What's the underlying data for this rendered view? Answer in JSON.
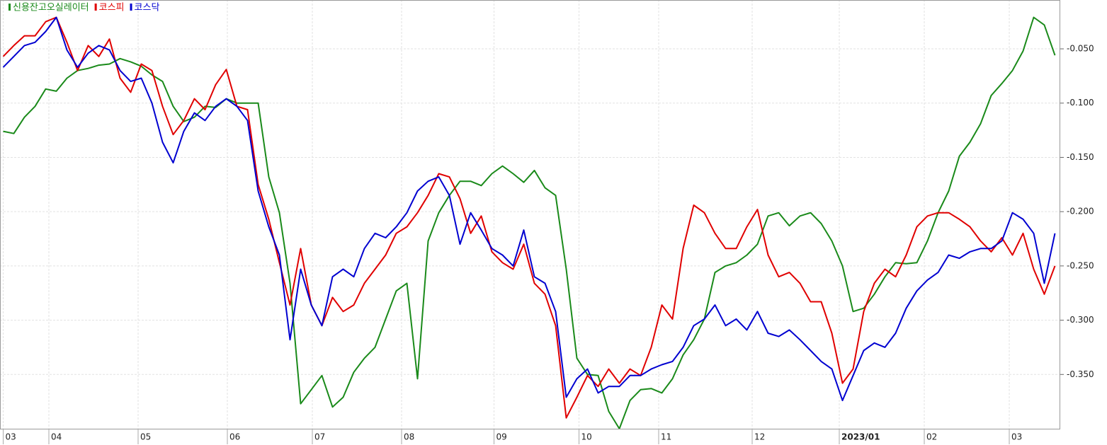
{
  "chart_data": {
    "type": "line",
    "xlim": [
      -0.3,
      99.5
    ],
    "xticks": [
      {
        "value": 0,
        "label": "03"
      },
      {
        "value": 4.3,
        "label": "04"
      },
      {
        "value": 12.7,
        "label": "05"
      },
      {
        "value": 21.1,
        "label": "06"
      },
      {
        "value": 29.1,
        "label": "07"
      },
      {
        "value": 37.5,
        "label": "08"
      },
      {
        "value": 46.2,
        "label": "09"
      },
      {
        "value": 54.2,
        "label": "10"
      },
      {
        "value": 61.7,
        "label": "11"
      },
      {
        "value": 70.5,
        "label": "12"
      },
      {
        "value": 78.7,
        "label": "2023/01"
      },
      {
        "value": 86.7,
        "label": "02"
      },
      {
        "value": 94.7,
        "label": "03"
      }
    ],
    "ylim": [
      -0.4,
      -0.005
    ],
    "yticks": [
      {
        "value": -0.05,
        "label": "-0.050"
      },
      {
        "value": -0.1,
        "label": "-0.100"
      },
      {
        "value": -0.15,
        "label": "-0.150"
      },
      {
        "value": -0.2,
        "label": "-0.200"
      },
      {
        "value": -0.25,
        "label": "-0.250"
      },
      {
        "value": -0.3,
        "label": "-0.300"
      },
      {
        "value": -0.35,
        "label": "-0.350"
      }
    ],
    "grid": true,
    "legend": "top-left",
    "series": [
      {
        "name": "신용잔고오실레이터",
        "color": "#1a8a1a",
        "values": [
          -0.126,
          -0.128,
          -0.113,
          -0.103,
          -0.087,
          -0.089,
          -0.077,
          -0.07,
          -0.068,
          -0.065,
          -0.064,
          -0.059,
          -0.062,
          -0.066,
          -0.074,
          -0.08,
          -0.103,
          -0.117,
          -0.113,
          -0.103,
          -0.104,
          -0.096,
          -0.1,
          -0.1,
          -0.1,
          -0.168,
          -0.201,
          -0.266,
          -0.377,
          -0.364,
          -0.351,
          -0.38,
          -0.371,
          -0.348,
          -0.335,
          -0.325,
          -0.299,
          -0.273,
          -0.266,
          -0.354,
          -0.227,
          -0.201,
          -0.185,
          -0.172,
          -0.172,
          -0.176,
          -0.165,
          -0.158,
          -0.165,
          -0.173,
          -0.162,
          -0.178,
          -0.185,
          -0.253,
          -0.335,
          -0.35,
          -0.351,
          -0.384,
          -0.4,
          -0.374,
          -0.364,
          -0.363,
          -0.367,
          -0.354,
          -0.332,
          -0.318,
          -0.299,
          -0.256,
          -0.25,
          -0.247,
          -0.24,
          -0.23,
          -0.204,
          -0.201,
          -0.213,
          -0.204,
          -0.201,
          -0.211,
          -0.227,
          -0.25,
          -0.292,
          -0.289,
          -0.276,
          -0.26,
          -0.247,
          -0.248,
          -0.247,
          -0.227,
          -0.201,
          -0.181,
          -0.149,
          -0.136,
          -0.119,
          -0.093,
          -0.082,
          -0.07,
          -0.052,
          -0.021,
          -0.028,
          -0.056
        ]
      },
      {
        "name": "코스피",
        "color": "#e00000",
        "values": [
          -0.057,
          -0.047,
          -0.038,
          -0.038,
          -0.025,
          -0.021,
          -0.044,
          -0.07,
          -0.047,
          -0.057,
          -0.041,
          -0.077,
          -0.09,
          -0.064,
          -0.07,
          -0.103,
          -0.129,
          -0.116,
          -0.096,
          -0.106,
          -0.083,
          -0.069,
          -0.103,
          -0.106,
          -0.175,
          -0.207,
          -0.247,
          -0.286,
          -0.234,
          -0.286,
          -0.305,
          -0.279,
          -0.292,
          -0.286,
          -0.266,
          -0.253,
          -0.24,
          -0.22,
          -0.214,
          -0.201,
          -0.185,
          -0.165,
          -0.168,
          -0.188,
          -0.22,
          -0.204,
          -0.237,
          -0.247,
          -0.253,
          -0.23,
          -0.266,
          -0.276,
          -0.305,
          -0.39,
          -0.371,
          -0.351,
          -0.361,
          -0.345,
          -0.358,
          -0.345,
          -0.351,
          -0.325,
          -0.286,
          -0.299,
          -0.234,
          -0.194,
          -0.201,
          -0.22,
          -0.234,
          -0.234,
          -0.214,
          -0.198,
          -0.24,
          -0.26,
          -0.256,
          -0.266,
          -0.283,
          -0.283,
          -0.312,
          -0.358,
          -0.345,
          -0.292,
          -0.266,
          -0.253,
          -0.26,
          -0.24,
          -0.214,
          -0.204,
          -0.201,
          -0.201,
          -0.207,
          -0.214,
          -0.227,
          -0.237,
          -0.224,
          -0.24,
          -0.22,
          -0.253,
          -0.276,
          -0.25
        ]
      },
      {
        "name": "코스닥",
        "color": "#0000d0",
        "values": [
          -0.067,
          -0.057,
          -0.047,
          -0.044,
          -0.034,
          -0.021,
          -0.051,
          -0.067,
          -0.054,
          -0.047,
          -0.051,
          -0.07,
          -0.08,
          -0.077,
          -0.1,
          -0.136,
          -0.155,
          -0.126,
          -0.109,
          -0.116,
          -0.103,
          -0.096,
          -0.103,
          -0.116,
          -0.181,
          -0.214,
          -0.24,
          -0.318,
          -0.253,
          -0.286,
          -0.305,
          -0.26,
          -0.253,
          -0.26,
          -0.234,
          -0.22,
          -0.224,
          -0.214,
          -0.201,
          -0.181,
          -0.172,
          -0.168,
          -0.185,
          -0.23,
          -0.201,
          -0.217,
          -0.234,
          -0.24,
          -0.25,
          -0.217,
          -0.26,
          -0.266,
          -0.292,
          -0.371,
          -0.354,
          -0.345,
          -0.367,
          -0.361,
          -0.361,
          -0.351,
          -0.351,
          -0.345,
          -0.341,
          -0.338,
          -0.325,
          -0.305,
          -0.299,
          -0.286,
          -0.305,
          -0.299,
          -0.309,
          -0.292,
          -0.312,
          -0.315,
          -0.309,
          -0.318,
          -0.328,
          -0.338,
          -0.345,
          -0.374,
          -0.351,
          -0.328,
          -0.321,
          -0.325,
          -0.312,
          -0.289,
          -0.273,
          -0.263,
          -0.256,
          -0.24,
          -0.243,
          -0.237,
          -0.234,
          -0.234,
          -0.227,
          -0.201,
          -0.207,
          -0.22,
          -0.266,
          -0.22
        ]
      }
    ]
  }
}
